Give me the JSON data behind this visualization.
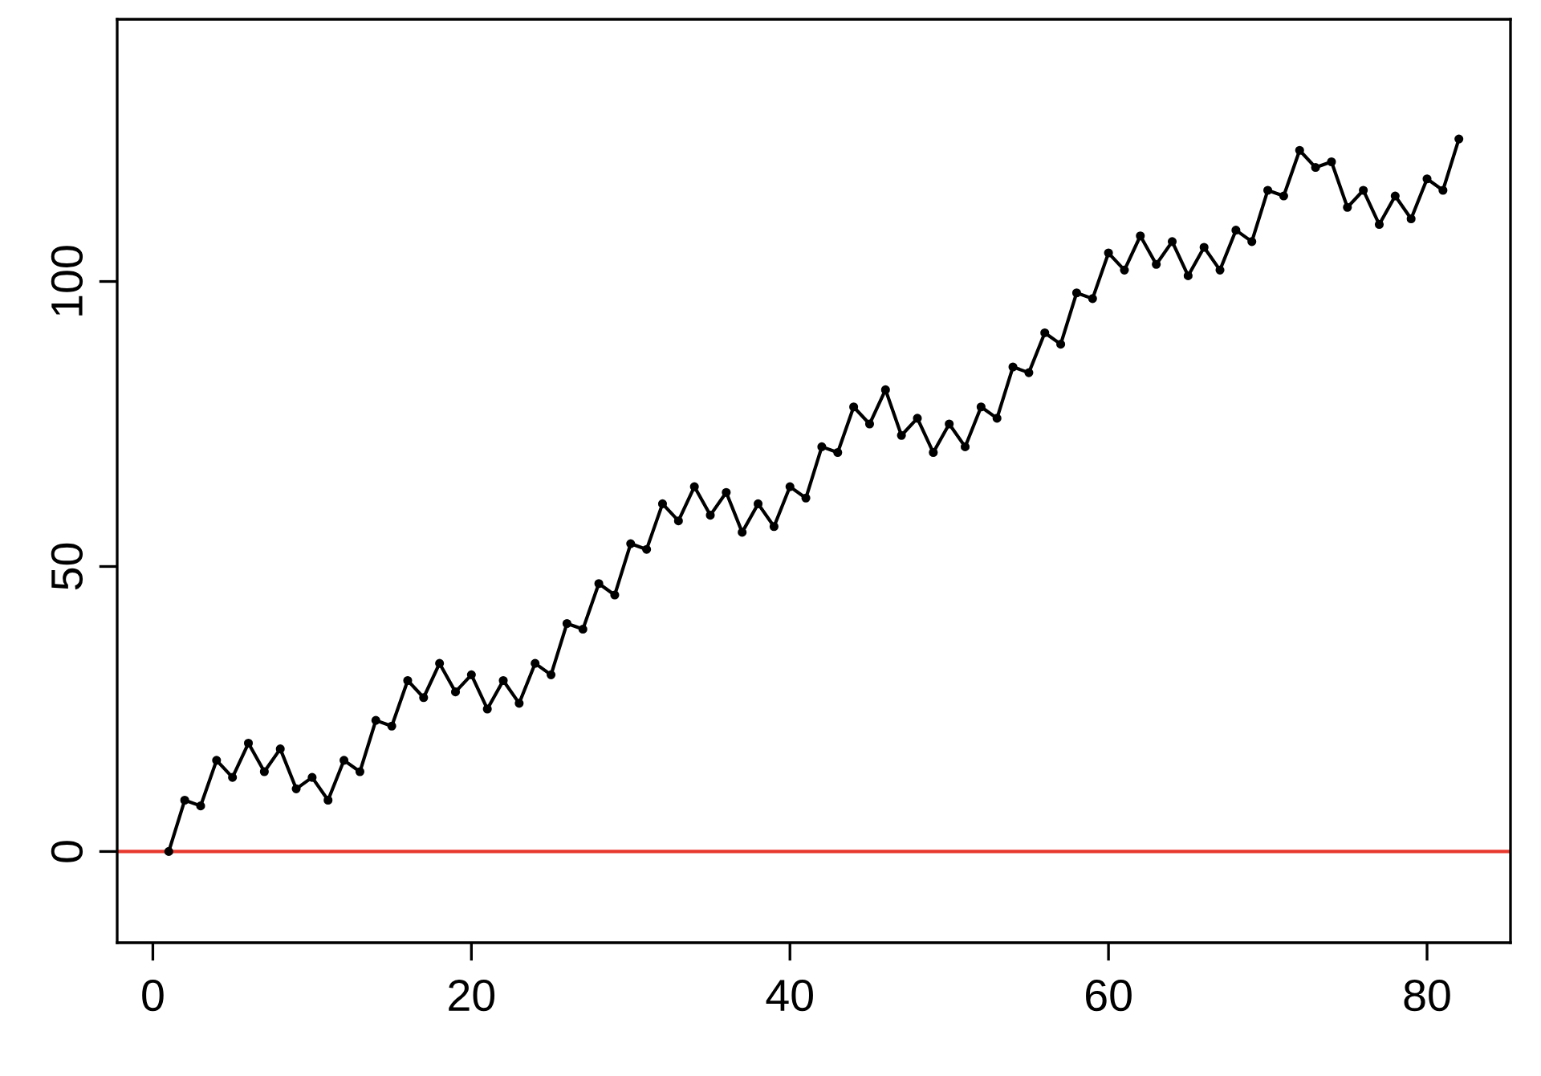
{
  "chart_data": {
    "type": "line",
    "x": [
      1,
      2,
      3,
      4,
      5,
      6,
      7,
      8,
      9,
      10,
      11,
      12,
      13,
      14,
      15,
      16,
      17,
      18,
      19,
      20,
      21,
      22,
      23,
      24,
      25,
      26,
      27,
      28,
      29,
      30,
      31,
      32,
      33,
      34,
      35,
      36,
      37,
      38,
      39,
      40,
      41,
      42,
      43,
      44,
      45,
      46,
      47,
      48,
      49,
      50,
      51,
      52,
      53,
      54,
      55,
      56,
      57,
      58,
      59,
      60,
      61,
      62,
      63,
      64,
      65,
      66,
      67,
      68,
      69,
      70,
      71,
      72,
      73,
      74,
      75,
      76,
      77,
      78,
      79,
      80,
      81,
      82
    ],
    "series": [
      {
        "color": "#000000",
        "values": [
          0,
          9,
          8,
          16,
          13,
          19,
          14,
          18,
          11,
          13,
          9,
          16,
          14,
          23,
          22,
          30,
          27,
          33,
          28,
          31,
          25,
          30,
          26,
          33,
          31,
          40,
          39,
          47,
          45,
          54,
          53,
          61,
          58,
          64,
          59,
          63,
          56,
          61,
          57,
          64,
          62,
          71,
          70,
          78,
          75,
          81,
          73,
          76,
          70,
          75,
          71,
          78,
          76,
          85,
          84,
          91,
          89,
          98,
          97,
          105,
          102,
          108,
          103,
          107,
          101,
          106,
          102,
          109,
          107,
          116,
          115,
          123,
          120,
          121,
          113,
          116,
          110,
          115,
          111,
          118,
          116,
          125
        ]
      }
    ],
    "xlim": [
      -2.24,
      85.24
    ],
    "ylim": [
      -16,
      146
    ],
    "xticks": [
      0,
      20,
      40,
      60,
      80
    ],
    "yticks": [
      0,
      50,
      100
    ],
    "ref_lines": [
      {
        "axis": "y",
        "value": 0,
        "color": "#e8392e",
        "line_style": "solid"
      }
    ],
    "marker": "circle",
    "line_style": "solid",
    "grid": false
  }
}
